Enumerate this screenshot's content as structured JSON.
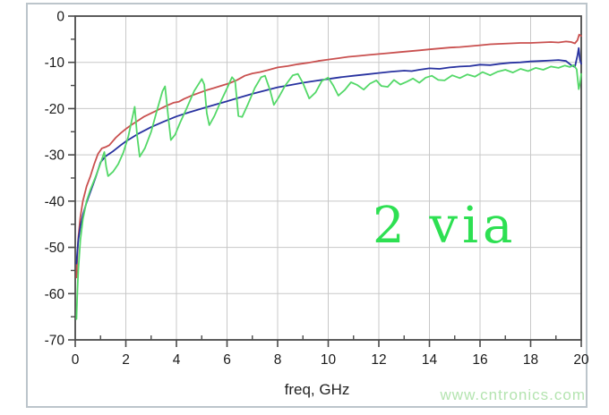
{
  "page": {
    "background": "#ffffff",
    "frame_border_color": "#bcc5cb",
    "watermark": "www.cntronics.com",
    "watermark_color": "#b4e4b0"
  },
  "chart_data": {
    "type": "line",
    "title": "",
    "xlabel": "freq, GHz",
    "ylabel": "",
    "xlim": [
      0,
      20
    ],
    "ylim": [
      -70,
      0
    ],
    "x_ticks_major": [
      0,
      2,
      4,
      6,
      8,
      10,
      12,
      14,
      16,
      18,
      20
    ],
    "x_ticks_minor": [
      1,
      3,
      5,
      7,
      9,
      11,
      13,
      15,
      17,
      19
    ],
    "y_ticks_major": [
      0,
      -10,
      -20,
      -30,
      -40,
      -50,
      -60,
      -70
    ],
    "y_ticks_minor": [
      -5,
      -15,
      -25,
      -35,
      -45,
      -55,
      -65
    ],
    "grid": true,
    "legend": "none",
    "axis_color": "#4a4a4a",
    "grid_color": "#c8c8c8",
    "tick_label_color": "#1a1a1a",
    "annotation": {
      "text": "2 via",
      "color": "#2de052",
      "x_ghz": 11.8,
      "y_db": -45
    },
    "series": [
      {
        "name": "red-trace",
        "color": "#c9504f",
        "points": [
          [
            0.05,
            -56.5
          ],
          [
            0.08,
            -52
          ],
          [
            0.12,
            -48
          ],
          [
            0.2,
            -43.5
          ],
          [
            0.3,
            -40
          ],
          [
            0.45,
            -36.8
          ],
          [
            0.6,
            -34.6
          ],
          [
            0.75,
            -32
          ],
          [
            0.9,
            -29.8
          ],
          [
            1.05,
            -28.6
          ],
          [
            1.2,
            -28.3
          ],
          [
            1.35,
            -27.9
          ],
          [
            1.6,
            -26.3
          ],
          [
            1.8,
            -25.3
          ],
          [
            2.0,
            -24.4
          ],
          [
            2.2,
            -23.6
          ],
          [
            2.4,
            -22.9
          ],
          [
            2.7,
            -21.8
          ],
          [
            3.0,
            -21.0
          ],
          [
            3.3,
            -20.2
          ],
          [
            3.6,
            -19.4
          ],
          [
            3.9,
            -18.7
          ],
          [
            4.1,
            -18.5
          ],
          [
            4.3,
            -17.9
          ],
          [
            4.6,
            -17.2
          ],
          [
            4.9,
            -16.6
          ],
          [
            5.2,
            -16.0
          ],
          [
            5.5,
            -15.5
          ],
          [
            5.8,
            -15.0
          ],
          [
            6.1,
            -14.5
          ],
          [
            6.4,
            -13.8
          ],
          [
            6.7,
            -12.9
          ],
          [
            7.0,
            -12.4
          ],
          [
            7.3,
            -12.1
          ],
          [
            7.6,
            -11.7
          ],
          [
            8.0,
            -11.1
          ],
          [
            8.4,
            -10.8
          ],
          [
            8.8,
            -10.4
          ],
          [
            9.2,
            -10.1
          ],
          [
            9.6,
            -9.7
          ],
          [
            10.0,
            -9.4
          ],
          [
            10.4,
            -9.1
          ],
          [
            10.8,
            -8.8
          ],
          [
            11.2,
            -8.6
          ],
          [
            11.6,
            -8.4
          ],
          [
            12.0,
            -8.2
          ],
          [
            12.4,
            -8.0
          ],
          [
            12.8,
            -7.8
          ],
          [
            13.2,
            -7.6
          ],
          [
            13.6,
            -7.4
          ],
          [
            14.0,
            -7.2
          ],
          [
            14.4,
            -7.0
          ],
          [
            14.8,
            -6.8
          ],
          [
            15.2,
            -6.7
          ],
          [
            15.6,
            -6.5
          ],
          [
            16.0,
            -6.3
          ],
          [
            16.4,
            -6.1
          ],
          [
            16.8,
            -6.0
          ],
          [
            17.2,
            -5.9
          ],
          [
            17.6,
            -5.8
          ],
          [
            18.0,
            -5.8
          ],
          [
            18.4,
            -5.7
          ],
          [
            18.8,
            -5.6
          ],
          [
            19.1,
            -5.7
          ],
          [
            19.4,
            -5.5
          ],
          [
            19.6,
            -5.6
          ],
          [
            19.75,
            -5.9
          ],
          [
            19.85,
            -5.2
          ],
          [
            19.92,
            -4.0
          ],
          [
            20.0,
            -4.3
          ]
        ]
      },
      {
        "name": "blue-trace",
        "color": "#2832a0",
        "points": [
          [
            0.05,
            -53.5
          ],
          [
            0.08,
            -51
          ],
          [
            0.12,
            -48.5
          ],
          [
            0.2,
            -45.5
          ],
          [
            0.3,
            -43
          ],
          [
            0.45,
            -40.3
          ],
          [
            0.6,
            -38
          ],
          [
            0.8,
            -35
          ],
          [
            1.0,
            -31.6
          ],
          [
            1.2,
            -30.3
          ],
          [
            1.5,
            -29.2
          ],
          [
            1.8,
            -27.9
          ],
          [
            2.0,
            -27.1
          ],
          [
            2.5,
            -25.4
          ],
          [
            3.0,
            -24.0
          ],
          [
            3.5,
            -22.8
          ],
          [
            4.0,
            -21.7
          ],
          [
            4.5,
            -20.8
          ],
          [
            5.0,
            -20.0
          ],
          [
            5.5,
            -19.2
          ],
          [
            6.0,
            -18.4
          ],
          [
            6.5,
            -17.6
          ],
          [
            7.0,
            -16.8
          ],
          [
            7.5,
            -16.1
          ],
          [
            8.0,
            -15.4
          ],
          [
            8.5,
            -14.9
          ],
          [
            9.0,
            -14.4
          ],
          [
            9.5,
            -14.0
          ],
          [
            10.0,
            -13.6
          ],
          [
            10.5,
            -13.2
          ],
          [
            11.0,
            -12.9
          ],
          [
            11.5,
            -12.6
          ],
          [
            12.0,
            -12.3
          ],
          [
            12.5,
            -12.0
          ],
          [
            13.0,
            -11.8
          ],
          [
            13.3,
            -11.9
          ],
          [
            13.6,
            -11.6
          ],
          [
            14.0,
            -11.3
          ],
          [
            14.4,
            -11.4
          ],
          [
            14.8,
            -11.1
          ],
          [
            15.2,
            -10.9
          ],
          [
            15.6,
            -10.8
          ],
          [
            16.0,
            -10.5
          ],
          [
            16.4,
            -10.6
          ],
          [
            16.8,
            -10.3
          ],
          [
            17.2,
            -10.1
          ],
          [
            17.6,
            -10.0
          ],
          [
            18.0,
            -9.8
          ],
          [
            18.4,
            -9.7
          ],
          [
            18.8,
            -9.6
          ],
          [
            19.1,
            -9.5
          ],
          [
            19.4,
            -9.7
          ],
          [
            19.6,
            -10.6
          ],
          [
            19.75,
            -11.0
          ],
          [
            19.85,
            -8.5
          ],
          [
            19.9,
            -6.9
          ],
          [
            19.95,
            -9.5
          ],
          [
            20.0,
            -10.3
          ]
        ]
      },
      {
        "name": "green-trace",
        "color": "#53d868",
        "points": [
          [
            0.05,
            -65.5
          ],
          [
            0.08,
            -60
          ],
          [
            0.12,
            -55
          ],
          [
            0.2,
            -48.5
          ],
          [
            0.3,
            -44
          ],
          [
            0.45,
            -40
          ],
          [
            0.6,
            -37.5
          ],
          [
            0.8,
            -34.8
          ],
          [
            1.0,
            -31.8
          ],
          [
            1.15,
            -29.4
          ],
          [
            1.22,
            -32.5
          ],
          [
            1.3,
            -34.6
          ],
          [
            1.5,
            -33.6
          ],
          [
            1.7,
            -32
          ],
          [
            1.9,
            -29.5
          ],
          [
            2.1,
            -26
          ],
          [
            2.35,
            -19.6
          ],
          [
            2.45,
            -26
          ],
          [
            2.55,
            -30.4
          ],
          [
            2.75,
            -28.6
          ],
          [
            3.0,
            -25
          ],
          [
            3.2,
            -21
          ],
          [
            3.45,
            -16.2
          ],
          [
            3.55,
            -15.2
          ],
          [
            3.68,
            -22
          ],
          [
            3.78,
            -26.8
          ],
          [
            3.95,
            -25.6
          ],
          [
            4.15,
            -23
          ],
          [
            4.4,
            -20
          ],
          [
            4.7,
            -16.2
          ],
          [
            5.0,
            -13.6
          ],
          [
            5.1,
            -14.8
          ],
          [
            5.2,
            -21
          ],
          [
            5.3,
            -23.6
          ],
          [
            5.5,
            -21.6
          ],
          [
            5.75,
            -18.5
          ],
          [
            6.0,
            -15.6
          ],
          [
            6.2,
            -13.2
          ],
          [
            6.32,
            -14
          ],
          [
            6.45,
            -21.6
          ],
          [
            6.6,
            -21.8
          ],
          [
            6.8,
            -19.4
          ],
          [
            7.1,
            -15.5
          ],
          [
            7.35,
            -13.2
          ],
          [
            7.5,
            -12.9
          ],
          [
            7.7,
            -16
          ],
          [
            7.85,
            -19.2
          ],
          [
            8.05,
            -17.5
          ],
          [
            8.3,
            -15
          ],
          [
            8.6,
            -12.8
          ],
          [
            8.8,
            -12.5
          ],
          [
            9.0,
            -14.5
          ],
          [
            9.25,
            -17.8
          ],
          [
            9.5,
            -16.5
          ],
          [
            9.75,
            -14
          ],
          [
            10.0,
            -13.3
          ],
          [
            10.2,
            -15
          ],
          [
            10.4,
            -17.2
          ],
          [
            10.65,
            -16
          ],
          [
            10.9,
            -14.3
          ],
          [
            11.15,
            -14.9
          ],
          [
            11.4,
            -15.9
          ],
          [
            11.65,
            -14.6
          ],
          [
            11.9,
            -13.9
          ],
          [
            12.1,
            -15.1
          ],
          [
            12.35,
            -15.3
          ],
          [
            12.6,
            -13.8
          ],
          [
            12.85,
            -14.8
          ],
          [
            13.1,
            -14.2
          ],
          [
            13.35,
            -13.5
          ],
          [
            13.6,
            -14.4
          ],
          [
            13.85,
            -13.3
          ],
          [
            14.1,
            -12.9
          ],
          [
            14.35,
            -13.8
          ],
          [
            14.6,
            -13.9
          ],
          [
            14.9,
            -12.8
          ],
          [
            15.2,
            -13.4
          ],
          [
            15.5,
            -12.6
          ],
          [
            15.8,
            -13.1
          ],
          [
            16.1,
            -12.1
          ],
          [
            16.4,
            -12.8
          ],
          [
            16.7,
            -12.0
          ],
          [
            17.0,
            -11.6
          ],
          [
            17.3,
            -12.2
          ],
          [
            17.6,
            -11.4
          ],
          [
            17.9,
            -11.9
          ],
          [
            18.2,
            -11.2
          ],
          [
            18.5,
            -11.6
          ],
          [
            18.8,
            -10.9
          ],
          [
            19.1,
            -11.2
          ],
          [
            19.35,
            -10.7
          ],
          [
            19.55,
            -11.0
          ],
          [
            19.7,
            -10.6
          ],
          [
            19.82,
            -11.5
          ],
          [
            19.9,
            -15.8
          ],
          [
            19.95,
            -14.5
          ],
          [
            20.0,
            -12.5
          ]
        ]
      }
    ]
  }
}
